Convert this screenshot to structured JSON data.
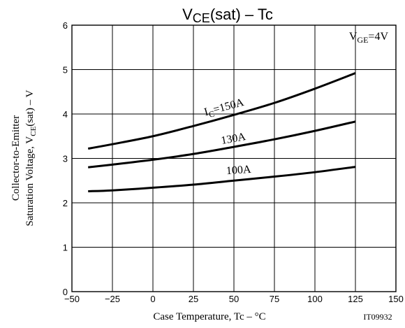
{
  "chart_data": {
    "type": "line",
    "title": "VCE(sat) – Tc",
    "xlabel": "Case Temperature, Tc – °C",
    "ylabel_line1": "Collector-to-Emitter",
    "ylabel_line2": "Saturation Voltage, VCE(sat) – V",
    "xlim": [
      -50,
      150
    ],
    "ylim": [
      0,
      6
    ],
    "xticks": [
      -50,
      -25,
      0,
      25,
      50,
      75,
      100,
      125,
      150
    ],
    "yticks": [
      0,
      1,
      2,
      3,
      4,
      5,
      6
    ],
    "grid": true,
    "condition": "VGE=4V",
    "figure_code": "IT09932",
    "series": [
      {
        "name": "IC=150A",
        "x": [
          -40,
          -25,
          0,
          25,
          50,
          75,
          100,
          125
        ],
        "y": [
          3.22,
          3.32,
          3.5,
          3.73,
          3.98,
          4.25,
          4.57,
          4.92
        ]
      },
      {
        "name": "130A",
        "x": [
          -40,
          -25,
          0,
          25,
          50,
          75,
          100,
          125
        ],
        "y": [
          2.8,
          2.86,
          2.97,
          3.1,
          3.26,
          3.43,
          3.62,
          3.83
        ]
      },
      {
        "name": "100A",
        "x": [
          -40,
          -25,
          0,
          25,
          50,
          75,
          100,
          125
        ],
        "y": [
          2.26,
          2.28,
          2.34,
          2.41,
          2.5,
          2.59,
          2.69,
          2.81
        ]
      }
    ]
  }
}
